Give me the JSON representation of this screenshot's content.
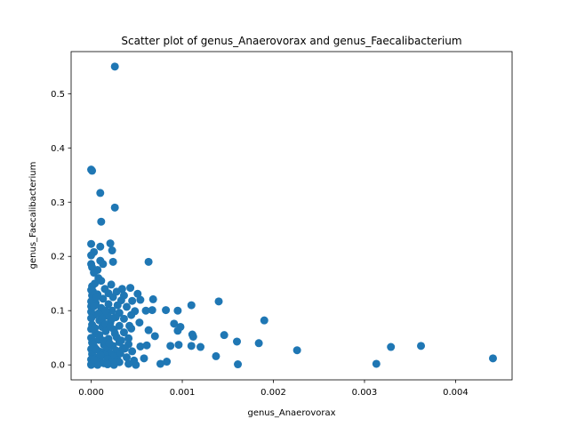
{
  "chart_data": {
    "type": "scatter",
    "title": "Scatter plot of genus_Anaerovorax and genus_Faecalibacterium",
    "xlabel": "genus_Anaerovorax",
    "ylabel": "genus_Faecalibacterium",
    "xlim": [
      -0.00022,
      0.00462
    ],
    "ylim": [
      -0.0276,
      0.5776
    ],
    "xticks": [
      0.0,
      0.001,
      0.002,
      0.003,
      0.004
    ],
    "xtick_labels": [
      "0.000",
      "0.001",
      "0.002",
      "0.003",
      "0.004"
    ],
    "yticks": [
      0.0,
      0.1,
      0.2,
      0.3,
      0.4,
      0.5
    ],
    "ytick_labels": [
      "0.0",
      "0.1",
      "0.2",
      "0.3",
      "0.4",
      "0.5"
    ],
    "grid": false,
    "color": "#1f77b4",
    "points": [
      [
        0.00026,
        0.55
      ],
      [
        0.0,
        0.36
      ],
      [
        1e-05,
        0.358
      ],
      [
        0.0001,
        0.317
      ],
      [
        0.00026,
        0.29
      ],
      [
        0.00011,
        0.264
      ],
      [
        0.0,
        0.223
      ],
      [
        0.00021,
        0.224
      ],
      [
        0.0001,
        0.218
      ],
      [
        0.00023,
        0.211
      ],
      [
        3e-05,
        0.208
      ],
      [
        0.0,
        0.202
      ],
      [
        0.00024,
        0.19
      ],
      [
        0.00063,
        0.19
      ],
      [
        0.0001,
        0.192
      ],
      [
        0.00013,
        0.186
      ],
      [
        0.0,
        0.186
      ],
      [
        1e-05,
        0.18
      ],
      [
        7e-05,
        0.175
      ],
      [
        3e-05,
        0.17
      ],
      [
        8e-05,
        0.16
      ],
      [
        0.00011,
        0.155
      ],
      [
        4e-05,
        0.15
      ],
      [
        1e-05,
        0.145
      ],
      [
        0.00022,
        0.148
      ],
      [
        0.00034,
        0.14
      ],
      [
        0.00043,
        0.142
      ],
      [
        0.00015,
        0.14
      ],
      [
        0.0,
        0.138
      ],
      [
        0.00028,
        0.135
      ],
      [
        0.00019,
        0.132
      ],
      [
        0.00051,
        0.131
      ],
      [
        7e-05,
        0.13
      ],
      [
        1e-05,
        0.128
      ],
      [
        0.00036,
        0.128
      ],
      [
        0.00024,
        0.125
      ],
      [
        0.00013,
        0.122
      ],
      [
        0.00068,
        0.121
      ],
      [
        0.00033,
        0.119
      ],
      [
        0.00045,
        0.118
      ],
      [
        0.0014,
        0.117
      ],
      [
        0.0,
        0.117
      ],
      [
        0.00054,
        0.12
      ],
      [
        5e-05,
        0.114
      ],
      [
        0.00019,
        0.112
      ],
      [
        0.00029,
        0.11
      ],
      [
        0.0011,
        0.11
      ],
      [
        0.0,
        0.108
      ],
      [
        0.00039,
        0.107
      ],
      [
        0.00011,
        0.105
      ],
      [
        0.0006,
        0.1
      ],
      [
        0.00082,
        0.101
      ],
      [
        0.00095,
        0.1
      ],
      [
        0.00067,
        0.101
      ],
      [
        0.00048,
        0.099
      ],
      [
        0.00023,
        0.1
      ],
      [
        0.0,
        0.098
      ],
      [
        0.00014,
        0.097
      ],
      [
        0.00031,
        0.096
      ],
      [
        0.00044,
        0.092
      ],
      [
        3e-05,
        0.092
      ],
      [
        0.00018,
        0.09
      ],
      [
        0.00027,
        0.088
      ],
      [
        0.0,
        0.086
      ],
      [
        0.00036,
        0.085
      ],
      [
        0.0019,
        0.082
      ],
      [
        9e-05,
        0.082
      ],
      [
        0.00053,
        0.078
      ],
      [
        0.00021,
        0.078
      ],
      [
        0.00091,
        0.076
      ],
      [
        1e-05,
        0.074
      ],
      [
        0.00031,
        0.072
      ],
      [
        0.00042,
        0.072
      ],
      [
        0.00098,
        0.07
      ],
      [
        0.00012,
        0.07
      ],
      [
        0.00044,
        0.067
      ],
      [
        0.0,
        0.066
      ],
      [
        0.00025,
        0.065
      ],
      [
        0.00063,
        0.064
      ],
      [
        0.00095,
        0.063
      ],
      [
        0.00016,
        0.062
      ],
      [
        0.00036,
        0.06
      ],
      [
        5e-05,
        0.058
      ],
      [
        0.00111,
        0.056
      ],
      [
        0.00146,
        0.055
      ],
      [
        0.0007,
        0.053
      ],
      [
        0.00112,
        0.052
      ],
      [
        0.00028,
        0.051
      ],
      [
        0.0,
        0.05
      ],
      [
        0.00041,
        0.049
      ],
      [
        0.00019,
        0.048
      ],
      [
        8e-05,
        0.046
      ],
      [
        0.0016,
        0.043
      ],
      [
        0.00031,
        0.042
      ],
      [
        1e-05,
        0.041
      ],
      [
        0.00184,
        0.04
      ],
      [
        0.00041,
        0.038
      ],
      [
        0.00014,
        0.037
      ],
      [
        0.00096,
        0.037
      ],
      [
        0.00061,
        0.036
      ],
      [
        0.00024,
        0.035
      ],
      [
        0.00087,
        0.035
      ],
      [
        0.0011,
        0.035
      ],
      [
        0.00362,
        0.035
      ],
      [
        0.00054,
        0.034
      ],
      [
        0.00329,
        0.033
      ],
      [
        0.0012,
        0.033
      ],
      [
        4e-05,
        0.032
      ],
      [
        0.00035,
        0.031
      ],
      [
        0.00017,
        0.03
      ],
      [
        0.0,
        0.029
      ],
      [
        0.00226,
        0.027
      ],
      [
        0.00028,
        0.026
      ],
      [
        0.00045,
        0.025
      ],
      [
        0.0001,
        0.024
      ],
      [
        0.00021,
        0.022
      ],
      [
        0.00032,
        0.021
      ],
      [
        1e-05,
        0.02
      ],
      [
        0.00015,
        0.018
      ],
      [
        0.00137,
        0.016
      ],
      [
        0.00025,
        0.015
      ],
      [
        0.00039,
        0.014
      ],
      [
        6e-05,
        0.013
      ],
      [
        0.00441,
        0.012
      ],
      [
        0.00058,
        0.012
      ],
      [
        0.00018,
        0.011
      ],
      [
        0.0,
        0.01
      ],
      [
        0.00029,
        0.009
      ],
      [
        0.00047,
        0.008
      ],
      [
        0.0001,
        0.007
      ],
      [
        0.00083,
        0.006
      ],
      [
        0.00022,
        0.006
      ],
      [
        0.00031,
        0.005
      ],
      [
        1e-05,
        0.004
      ],
      [
        0.00014,
        0.003
      ],
      [
        0.00076,
        0.002
      ],
      [
        0.00041,
        0.002
      ],
      [
        0.00313,
        0.002
      ],
      [
        0.0,
        0.001
      ],
      [
        0.00161,
        0.001
      ],
      [
        0.00049,
        0.0
      ],
      [
        0.00025,
        0.0
      ],
      [
        7e-05,
        0.0
      ],
      [
        0.0,
        0.0
      ],
      [
        0.00018,
        0.001
      ],
      [
        2e-05,
        0.135
      ],
      [
        6e-05,
        0.125
      ],
      [
        3e-05,
        0.108
      ],
      [
        8e-05,
        0.095
      ],
      [
        0.00012,
        0.085
      ],
      [
        0.00016,
        0.075
      ],
      [
        4e-05,
        0.068
      ],
      [
        9e-05,
        0.055
      ],
      [
        0.00013,
        0.045
      ],
      [
        2e-05,
        0.038
      ],
      [
        6e-05,
        0.028
      ],
      [
        0.0001,
        0.018
      ],
      [
        3e-05,
        0.01
      ],
      [
        0.00016,
        0.1
      ],
      [
        0.00021,
        0.07
      ],
      [
        0.00026,
        0.058
      ],
      [
        0.00033,
        0.045
      ],
      [
        0.00037,
        0.03
      ],
      [
        0.0002,
        0.04
      ],
      [
        0.00023,
        0.085
      ]
    ]
  }
}
